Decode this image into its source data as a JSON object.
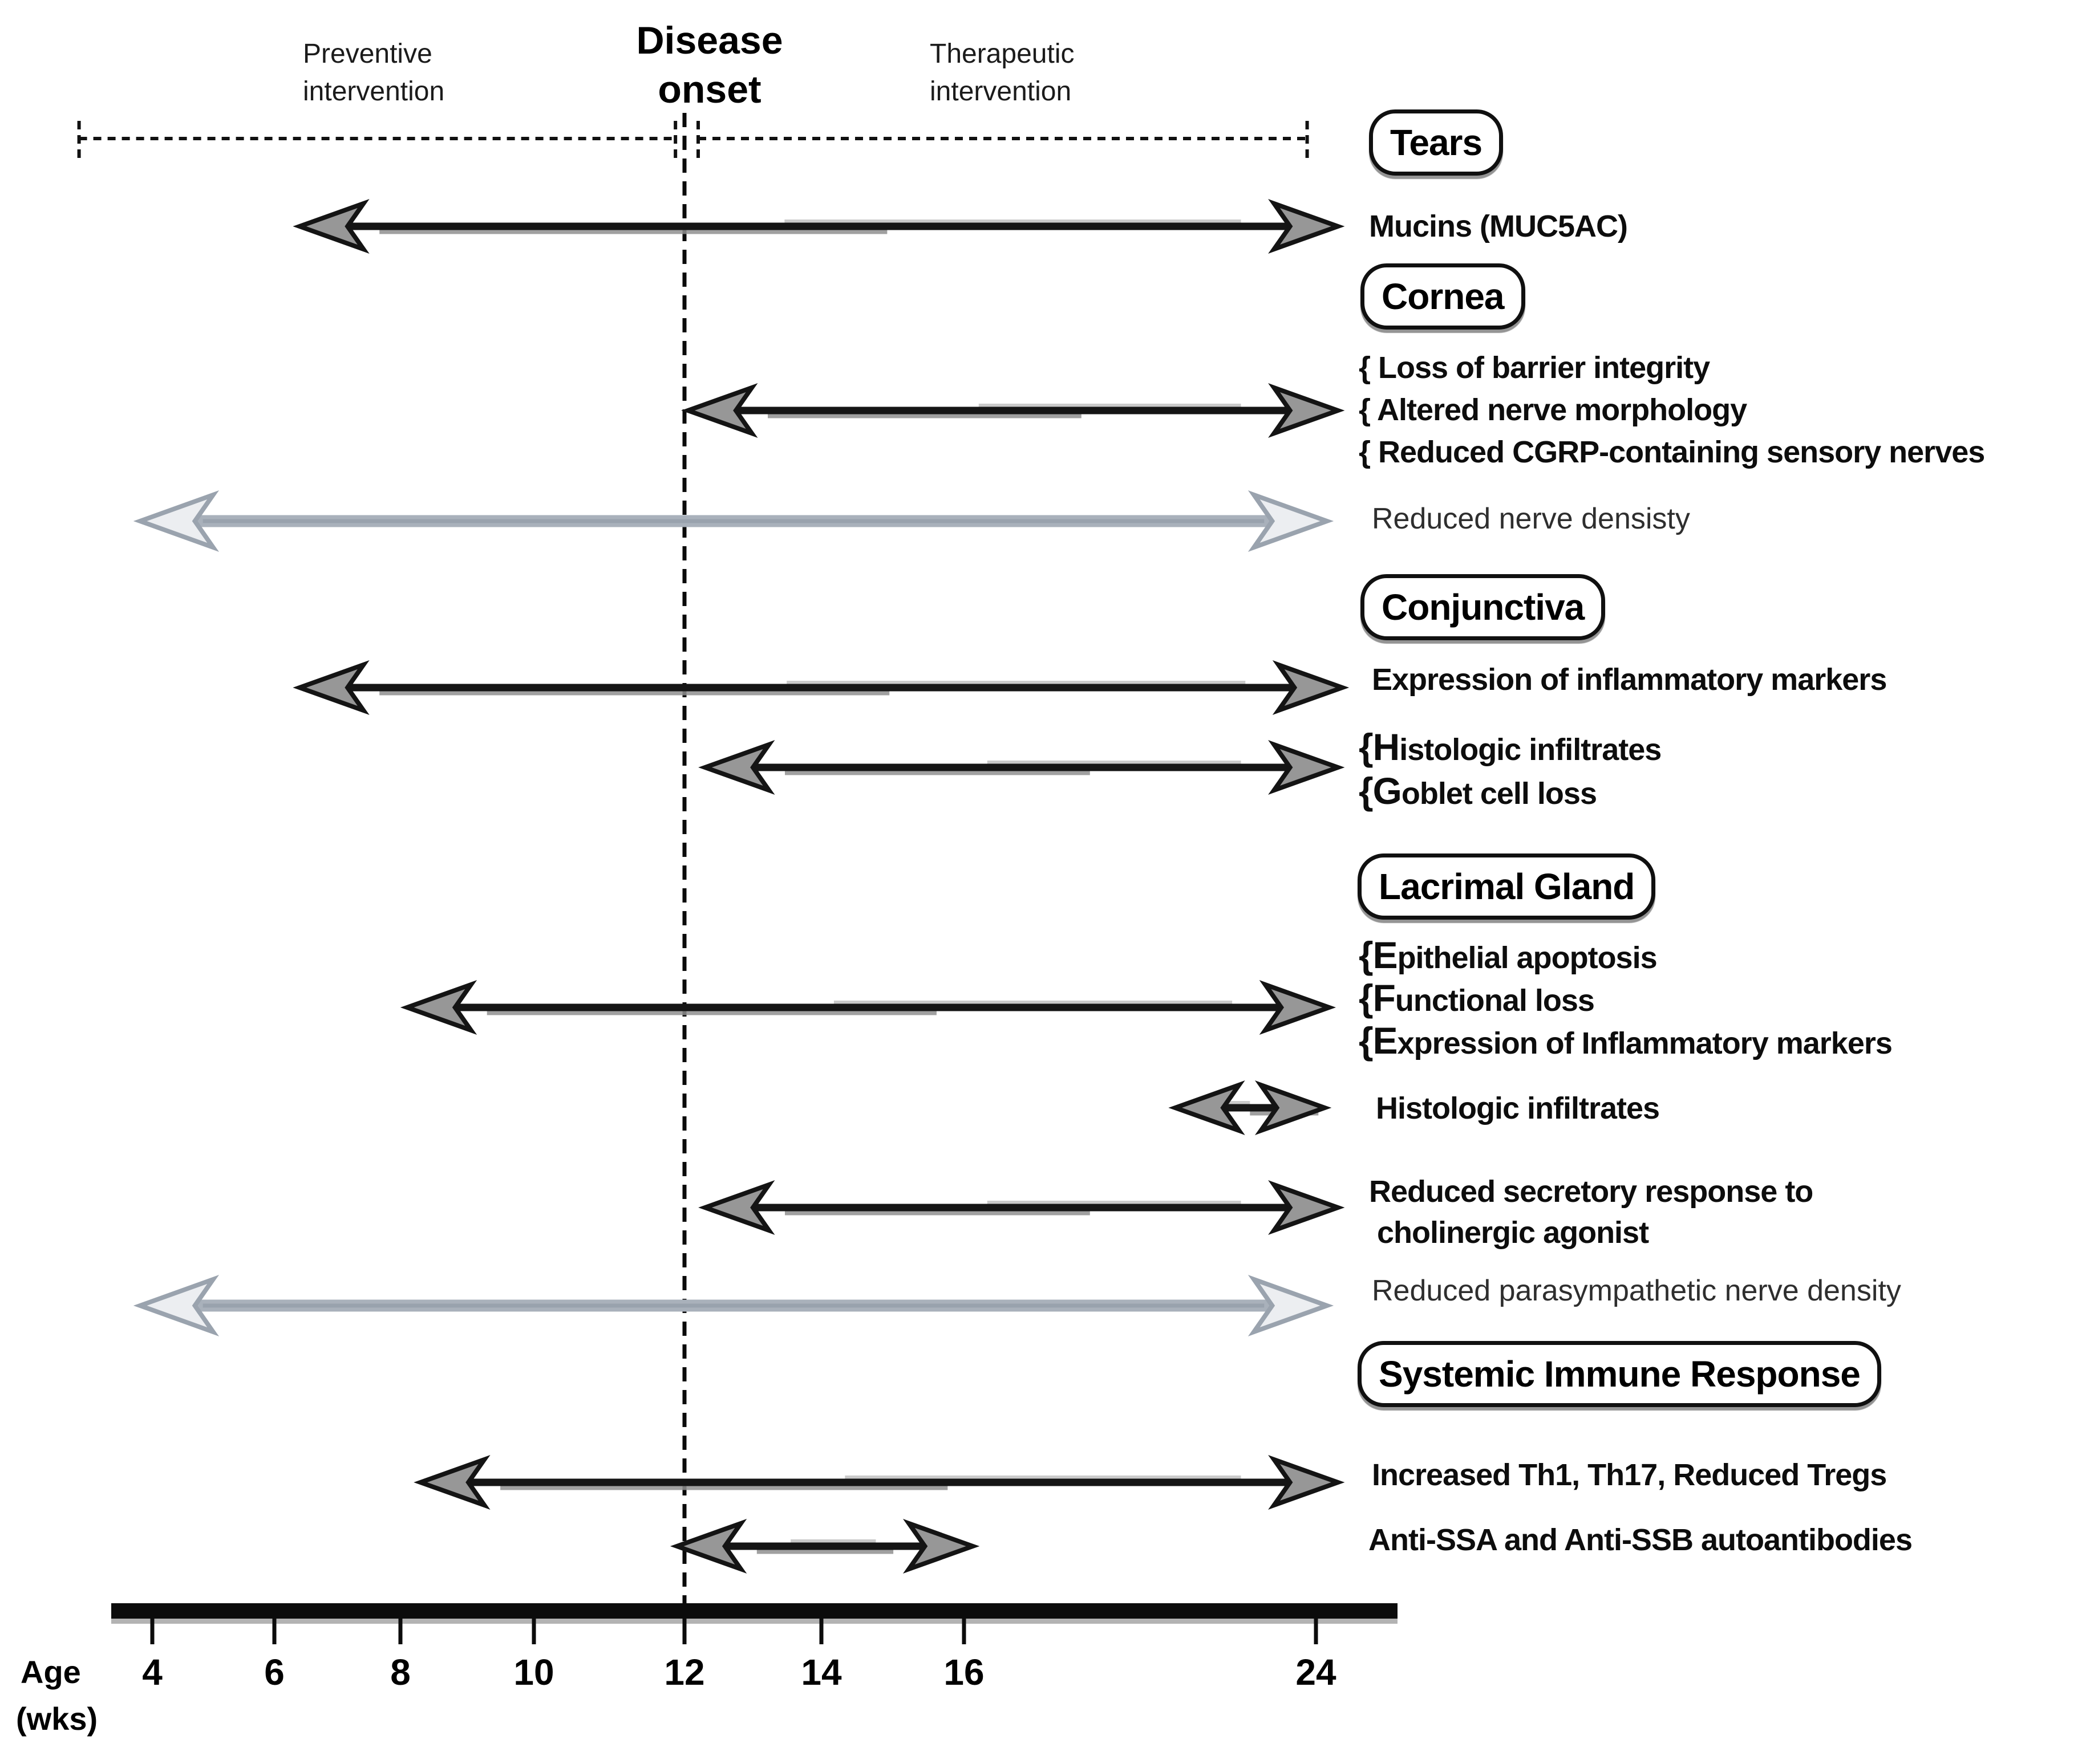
{
  "figure": {
    "top": {
      "preventive": [
        "Preventive",
        "intervention"
      ],
      "disease_onset": [
        "Disease",
        "onset"
      ],
      "therapeutic": [
        "Therapeutic",
        "intervention"
      ]
    },
    "axis": {
      "name_lines": [
        "Age",
        "(wks)"
      ],
      "ticks": [
        "4",
        "6",
        "8",
        "10",
        "12",
        "14",
        "16",
        "24"
      ]
    }
  },
  "chart_data": {
    "type": "timeline",
    "title": "Time course of dry-eye disease phenotypes relative to disease onset",
    "x_axis": {
      "label": "Age (wks)",
      "tick_values_wk": [
        4,
        6,
        8,
        10,
        12,
        14,
        16,
        24
      ],
      "note": "axis spacing is compressed between 16 and 24 wks"
    },
    "disease_onset_wk": 12,
    "intervention_windows": [
      {
        "label": "Preventive intervention",
        "from_wk": 2.8,
        "to_wk": 11.88
      },
      {
        "label": "Therapeutic intervention",
        "from_wk": 12.2,
        "to_wk": 23.8
      }
    ],
    "arrow_styles": {
      "black": "#151515",
      "gray": "#a9b1bb"
    },
    "sections": [
      {
        "title": "Tears",
        "rows": [
          {
            "labels": [
              "Mucins (MUC5AC)"
            ],
            "start_wk": 6.4,
            "end_wk": 24.5,
            "style": "black"
          }
        ]
      },
      {
        "title": "Cornea",
        "rows": [
          {
            "labels": [
              "{ Loss of barrier integrity",
              "{ Altered nerve morphology",
              "{ Reduced CGRP-containing sensory nerves"
            ],
            "start_wk": 12.05,
            "end_wk": 24.5,
            "style": "black"
          },
          {
            "labels": [
              "Reduced nerve densisty"
            ],
            "start_wk": 3.8,
            "end_wk": 24.25,
            "style": "gray"
          }
        ]
      },
      {
        "title": "Conjunctiva",
        "rows": [
          {
            "labels": [
              "Expression of inflammatory markers"
            ],
            "start_wk": 6.4,
            "end_wk": 24.6,
            "style": "black"
          },
          {
            "labels": [
              "{Histologic infiltrates",
              "{Goblet cell loss"
            ],
            "start_wk": 12.3,
            "end_wk": 24.5,
            "style": "black"
          }
        ]
      },
      {
        "title": "Lacrimal Gland",
        "rows": [
          {
            "labels": [
              "{Epithelial apoptosis",
              "{Functional loss",
              "{Expression of Inflammatory markers"
            ],
            "start_wk": 8.1,
            "end_wk": 24.3,
            "style": "black"
          },
          {
            "labels": [
              "Histologic infiltrates"
            ],
            "start_wk": 20.8,
            "end_wk": 24.2,
            "style": "black"
          },
          {
            "labels": [
              "Reduced secretory response to",
              " cholinergic agonist"
            ],
            "start_wk": 12.3,
            "end_wk": 24.5,
            "style": "black"
          },
          {
            "labels": [
              "Reduced parasympathetic nerve density"
            ],
            "start_wk": 3.8,
            "end_wk": 24.25,
            "style": "gray"
          }
        ]
      },
      {
        "title": "Systemic Immune Response",
        "rows": [
          {
            "labels": [
              "Increased Th1, Th17, Reduced Tregs"
            ],
            "start_wk": 8.3,
            "end_wk": 24.5,
            "style": "black"
          },
          {
            "labels": [
              "Anti-SSA and Anti-SSB autoantibodies"
            ],
            "start_wk": 11.9,
            "end_wk": 16.2,
            "style": "black"
          }
        ]
      }
    ]
  }
}
